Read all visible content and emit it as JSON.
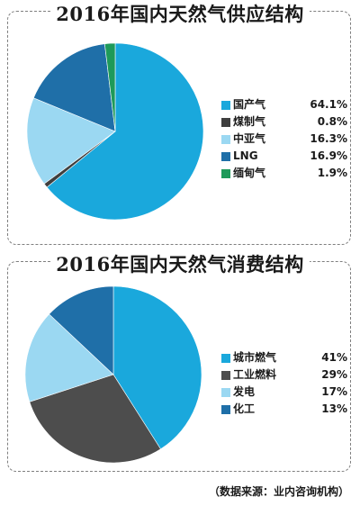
{
  "source": "（数据来源：业内咨询机构）",
  "chart_data": [
    {
      "type": "pie",
      "title": "2016年国内天然气供应结构",
      "slices": [
        {
          "label": "国产气",
          "value": 64.1,
          "value_label": "64.1%",
          "color": "#1aa8dc"
        },
        {
          "label": "煤制气",
          "value": 0.8,
          "value_label": "0.8%",
          "color": "#3f3f3f"
        },
        {
          "label": "中亚气",
          "value": 16.3,
          "value_label": "16.3%",
          "color": "#9bd8f2"
        },
        {
          "label": "LNG",
          "value": 16.9,
          "value_label": "16.9%",
          "color": "#1f6fa8"
        },
        {
          "label": "缅甸气",
          "value": 1.9,
          "value_label": "1.9%",
          "color": "#1e9a5a"
        }
      ]
    },
    {
      "type": "pie",
      "title": "2016年国内天然气消费结构",
      "slices": [
        {
          "label": "城市燃气",
          "value": 41,
          "value_label": "41%",
          "color": "#1aa8dc"
        },
        {
          "label": "工业燃料",
          "value": 29,
          "value_label": "29%",
          "color": "#4d4d4d"
        },
        {
          "label": "发电",
          "value": 17,
          "value_label": "17%",
          "color": "#9bd8f2"
        },
        {
          "label": "化工",
          "value": 13,
          "value_label": "13%",
          "color": "#1f6fa8"
        }
      ]
    }
  ]
}
